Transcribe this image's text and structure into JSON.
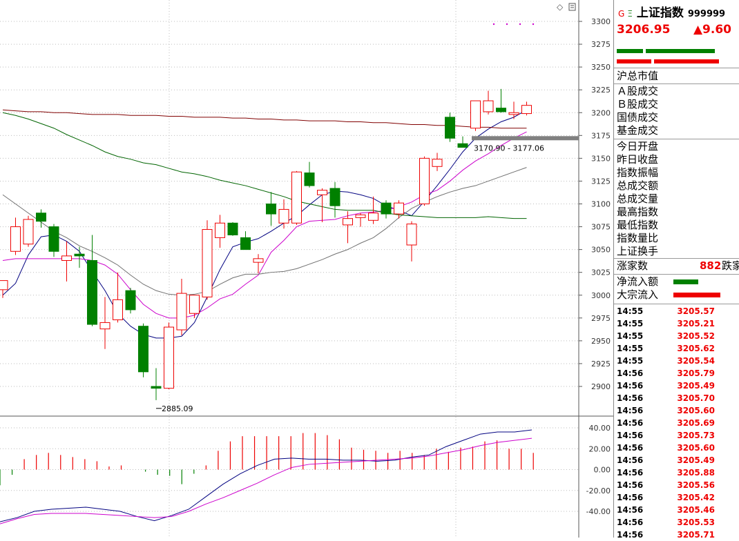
{
  "chart_data": [
    {
      "type": "candlestick",
      "title": "",
      "y_ticks": [
        3300,
        3275,
        3250,
        3225,
        3200,
        3175,
        3150,
        3125,
        3100,
        3075,
        3050,
        3025,
        3000,
        2975,
        2950,
        2925,
        2900
      ],
      "ylim": [
        2880,
        3303
      ],
      "candles": [
        {
          "o": 3006,
          "h": 3016,
          "l": 2997,
          "c": 3016
        },
        {
          "o": 3048,
          "h": 3085,
          "l": 3044,
          "c": 3075
        },
        {
          "o": 3056,
          "h": 3087,
          "l": 3053,
          "c": 3083
        },
        {
          "o": 3090,
          "h": 3094,
          "l": 3074,
          "c": 3081
        },
        {
          "o": 3075,
          "h": 3078,
          "l": 3042,
          "c": 3048
        },
        {
          "o": 3038,
          "h": 3059,
          "l": 3015,
          "c": 3043
        },
        {
          "o": 3045,
          "h": 3053,
          "l": 3030,
          "c": 3043
        },
        {
          "o": 3038,
          "h": 3066,
          "l": 2966,
          "c": 2968
        },
        {
          "o": 2963,
          "h": 2998,
          "l": 2941,
          "c": 2970
        },
        {
          "o": 2973,
          "h": 3025,
          "l": 2970,
          "c": 2995
        },
        {
          "o": 3005,
          "h": 3008,
          "l": 2980,
          "c": 2984
        },
        {
          "o": 2966,
          "h": 2969,
          "l": 2910,
          "c": 2916
        },
        {
          "o": 2900,
          "h": 2920,
          "l": 2885,
          "c": 2898
        },
        {
          "o": 2898,
          "h": 2970,
          "l": 2897,
          "c": 2965
        },
        {
          "o": 2962,
          "h": 3018,
          "l": 2956,
          "c": 3002
        },
        {
          "o": 2980,
          "h": 3000,
          "l": 2975,
          "c": 3000
        },
        {
          "o": 2998,
          "h": 3082,
          "l": 2995,
          "c": 3072
        },
        {
          "o": 3063,
          "h": 3088,
          "l": 3052,
          "c": 3079
        },
        {
          "o": 3079,
          "h": 3080,
          "l": 3065,
          "c": 3066
        },
        {
          "o": 3063,
          "h": 3070,
          "l": 3053,
          "c": 3050
        },
        {
          "o": 3036,
          "h": 3045,
          "l": 3024,
          "c": 3040
        },
        {
          "o": 3100,
          "h": 3113,
          "l": 3076,
          "c": 3089
        },
        {
          "o": 3079,
          "h": 3105,
          "l": 3073,
          "c": 3094
        },
        {
          "o": 3079,
          "h": 3136,
          "l": 3077,
          "c": 3135
        },
        {
          "o": 3134,
          "h": 3146,
          "l": 3118,
          "c": 3120
        },
        {
          "o": 3110,
          "h": 3117,
          "l": 3080,
          "c": 3115
        },
        {
          "o": 3117,
          "h": 3124,
          "l": 3085,
          "c": 3098
        },
        {
          "o": 3077,
          "h": 3092,
          "l": 3057,
          "c": 3084
        },
        {
          "o": 3085,
          "h": 3090,
          "l": 3075,
          "c": 3088
        },
        {
          "o": 3082,
          "h": 3108,
          "l": 3078,
          "c": 3090
        },
        {
          "o": 3101,
          "h": 3104,
          "l": 3084,
          "c": 3089
        },
        {
          "o": 3089,
          "h": 3104,
          "l": 3084,
          "c": 3101
        },
        {
          "o": 3055,
          "h": 3081,
          "l": 3037,
          "c": 3078
        },
        {
          "o": 3100,
          "h": 3152,
          "l": 3098,
          "c": 3150
        },
        {
          "o": 3141,
          "h": 3156,
          "l": 3136,
          "c": 3149
        },
        {
          "o": 3195,
          "h": 3200,
          "l": 3168,
          "c": 3172
        },
        {
          "o": 3166,
          "h": 3174,
          "l": 3163,
          "c": 3162
        },
        {
          "o": 3183,
          "h": 3213,
          "l": 3180,
          "c": 3213
        },
        {
          "o": 3201,
          "h": 3224,
          "l": 3198,
          "c": 3213
        },
        {
          "o": 3205,
          "h": 3226,
          "l": 3200,
          "c": 3201
        },
        {
          "o": 3198,
          "h": 3212,
          "l": 3193,
          "c": 3200
        },
        {
          "o": 3199,
          "h": 3212,
          "l": 3197,
          "c": 3208
        }
      ],
      "ma_lines": [
        {
          "color": "#000080",
          "points": [
            3000,
            3013,
            3044,
            3064,
            3066,
            3059,
            3048,
            3026,
            3005,
            2980,
            2966,
            2957,
            2953,
            2953,
            2955,
            2970,
            2998,
            3028,
            3053,
            3058,
            3062,
            3070,
            3079,
            3087,
            3099,
            3110,
            3114,
            3113,
            3110,
            3106,
            3098,
            3093,
            3087,
            3103,
            3120,
            3138,
            3157,
            3172,
            3182,
            3190,
            3195,
            3203
          ]
        },
        {
          "color": "#cc00cc",
          "points": [
            3038,
            3040,
            3040,
            3040,
            3040,
            3040,
            3040,
            3038,
            3033,
            3023,
            3006,
            2990,
            2980,
            2975,
            2975,
            2978,
            2986,
            2996,
            3001,
            3012,
            3022,
            3047,
            3060,
            3075,
            3081,
            3082,
            3083,
            3087,
            3090,
            3091,
            3093,
            3097,
            3102,
            3110,
            3115,
            3125,
            3137,
            3147,
            3155,
            3164,
            3172,
            3179
          ]
        },
        {
          "color": "#707070",
          "points": [
            3110,
            3100,
            3090,
            3080,
            3070,
            3063,
            3054,
            3048,
            3041,
            3033,
            3022,
            3012,
            3005,
            3001,
            3000,
            3001,
            3004,
            3012,
            3019,
            3023,
            3023,
            3025,
            3026,
            3029,
            3034,
            3039,
            3045,
            3050,
            3057,
            3063,
            3073,
            3085,
            3095,
            3102,
            3108,
            3113,
            3117,
            3120,
            3125,
            3130,
            3135,
            3140
          ]
        },
        {
          "color": "#006400",
          "points": [
            3200,
            3197,
            3193,
            3188,
            3183,
            3176,
            3170,
            3164,
            3157,
            3152,
            3149,
            3145,
            3143,
            3139,
            3135,
            3133,
            3130,
            3126,
            3123,
            3120,
            3116,
            3112,
            3108,
            3103,
            3100,
            3097,
            3094,
            3093,
            3093,
            3093,
            3090,
            3088,
            3087,
            3086,
            3085,
            3085,
            3085,
            3085,
            3086,
            3085,
            3084,
            3084
          ]
        },
        {
          "color": "#800000",
          "points": [
            3203,
            3202,
            3201,
            3201,
            3200,
            3200,
            3199,
            3198,
            3198,
            3198,
            3197,
            3197,
            3197,
            3196,
            3196,
            3195,
            3195,
            3195,
            3194,
            3194,
            3193,
            3193,
            3192,
            3192,
            3191,
            3191,
            3191,
            3190,
            3190,
            3189,
            3189,
            3188,
            3187,
            3187,
            3186,
            3186,
            3185,
            3184,
            3184,
            3183,
            3183,
            3183
          ]
        }
      ],
      "annotations": [
        "2885.09",
        "3170.90 - 3177.06"
      ]
    },
    {
      "type": "bar",
      "title": "",
      "y_ticks": [
        40.0,
        20.0,
        0.0,
        -20.0,
        -40.0
      ],
      "ylim": [
        -50,
        45
      ],
      "values": [
        -15,
        -5,
        10,
        14,
        16,
        14,
        12,
        10,
        8,
        3,
        4,
        0,
        -2,
        -5,
        -6,
        -14,
        -4,
        4,
        18,
        27,
        32,
        32,
        32,
        32,
        32,
        35,
        35,
        33,
        29,
        21,
        19,
        18,
        16,
        18,
        16,
        14,
        20,
        17,
        21,
        22,
        27,
        28,
        20,
        20,
        16
      ],
      "lines": [
        {
          "color": "#000080",
          "points": [
            -50,
            -46,
            -40,
            -38,
            -37,
            -36,
            -38,
            -40,
            -45,
            -49,
            -44,
            -38,
            -26,
            -14,
            -4,
            4,
            10,
            11,
            10,
            10,
            9,
            9,
            8,
            9,
            12,
            14,
            22,
            28,
            34,
            36,
            36,
            38
          ]
        },
        {
          "color": "#cc00cc",
          "points": [
            -52,
            -47,
            -43,
            -42,
            -42,
            -42,
            -43,
            -44,
            -45,
            -46,
            -45,
            -40,
            -33,
            -27,
            -20,
            -13,
            -5,
            2,
            5,
            6,
            7,
            8,
            9,
            10,
            11,
            13,
            16,
            19,
            23,
            26,
            28,
            30
          ]
        }
      ]
    }
  ],
  "side": {
    "header_g": "G",
    "header_e": "Ξ",
    "index_name": "上证指数",
    "index_code": "999999",
    "price": "3206.95",
    "change": "▲9.60",
    "labels_a": [
      "沪总市值"
    ],
    "labels_b": [
      "Ａ股成交",
      "Ｂ股成交",
      "国债成交",
      "基金成交"
    ],
    "labels_c": [
      "今日开盘",
      "昨日收盘",
      "指数振幅",
      "总成交额",
      "总成交量",
      "最高指数",
      "最低指数",
      "指数量比",
      "上证换手"
    ],
    "rise_label": "涨家数",
    "rise_count": "882",
    "fall_label": "跌家",
    "flow_labels": [
      "净流入额",
      "大宗流入"
    ],
    "ticks": [
      {
        "t": "14:55",
        "v": "3205.57"
      },
      {
        "t": "14:55",
        "v": "3205.21"
      },
      {
        "t": "14:55",
        "v": "3205.52"
      },
      {
        "t": "14:55",
        "v": "3205.62"
      },
      {
        "t": "14:55",
        "v": "3205.54"
      },
      {
        "t": "14:56",
        "v": "3205.79"
      },
      {
        "t": "14:56",
        "v": "3205.49"
      },
      {
        "t": "14:56",
        "v": "3205.70"
      },
      {
        "t": "14:56",
        "v": "3205.60"
      },
      {
        "t": "14:56",
        "v": "3205.69"
      },
      {
        "t": "14:56",
        "v": "3205.73"
      },
      {
        "t": "14:56",
        "v": "3205.60"
      },
      {
        "t": "14:56",
        "v": "3205.49"
      },
      {
        "t": "14:56",
        "v": "3205.88"
      },
      {
        "t": "14:56",
        "v": "3205.56"
      },
      {
        "t": "14:56",
        "v": "3205.42"
      },
      {
        "t": "14:56",
        "v": "3205.46"
      },
      {
        "t": "14:56",
        "v": "3205.53"
      },
      {
        "t": "14:56",
        "v": "3205.71"
      }
    ]
  }
}
